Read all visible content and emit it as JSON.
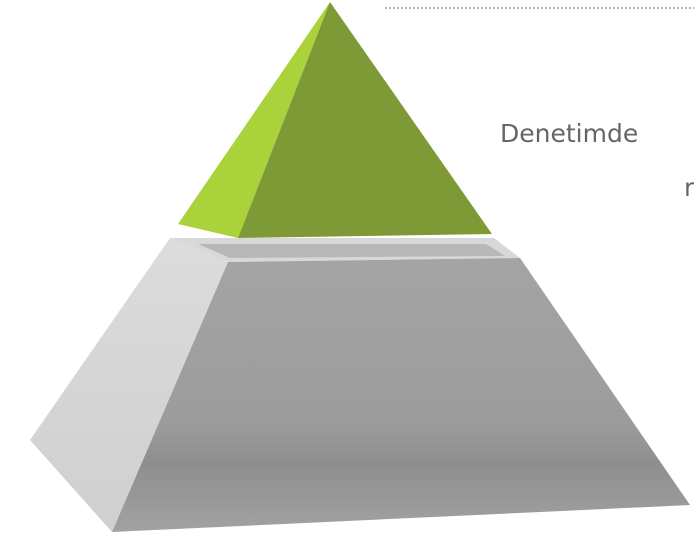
{
  "text": {
    "lines": [
      "Denetimde",
      "r"
    ]
  }
}
